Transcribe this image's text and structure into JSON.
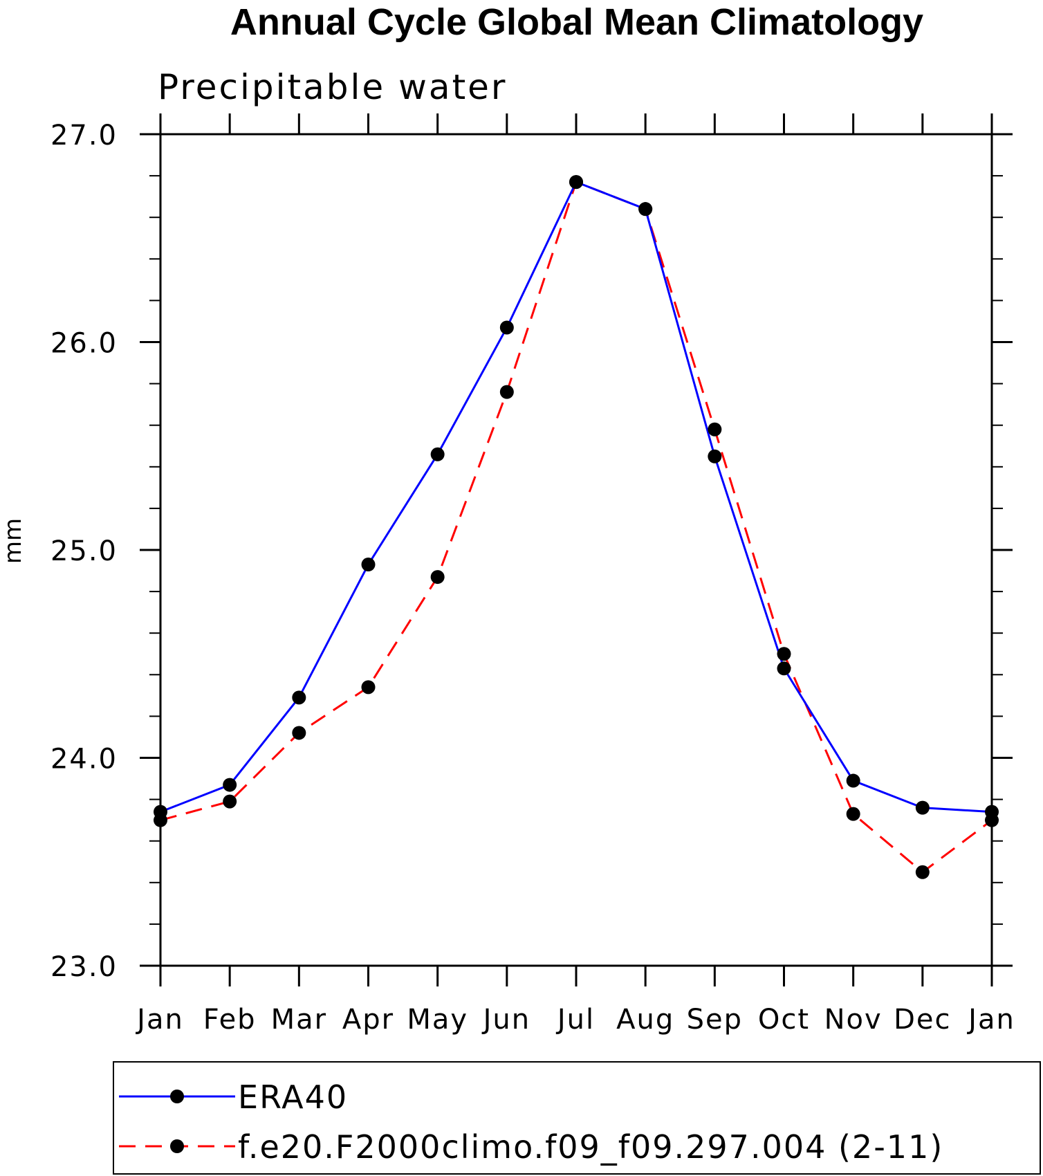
{
  "chart_data": {
    "type": "line",
    "title": "Annual Cycle Global Mean Climatology",
    "subtitle": "Precipitable water",
    "xlabel": "",
    "ylabel": "mm",
    "categories": [
      "Jan",
      "Feb",
      "Mar",
      "Apr",
      "May",
      "Jun",
      "Jul",
      "Aug",
      "Sep",
      "Oct",
      "Nov",
      "Dec",
      "Jan"
    ],
    "ylim": [
      23.0,
      27.0
    ],
    "yticks": [
      "23.0",
      "24.0",
      "25.0",
      "26.0",
      "27.0"
    ],
    "grid": false,
    "legend_position": "bottom",
    "series": [
      {
        "name": "ERA40",
        "color": "#0000ff",
        "style": "solid",
        "marker": "filled-circle",
        "values": [
          23.74,
          23.87,
          24.29,
          24.93,
          25.46,
          26.07,
          26.77,
          26.64,
          25.45,
          24.43,
          23.89,
          23.76,
          23.74
        ]
      },
      {
        "name": "f.e20.F2000climo.f09_f09.297.004 (2-11)",
        "color": "#ff0000",
        "style": "dashed",
        "marker": "filled-circle",
        "values": [
          23.7,
          23.79,
          24.12,
          24.34,
          24.87,
          25.76,
          26.77,
          26.64,
          25.58,
          24.5,
          23.73,
          23.45,
          23.7
        ]
      }
    ]
  }
}
